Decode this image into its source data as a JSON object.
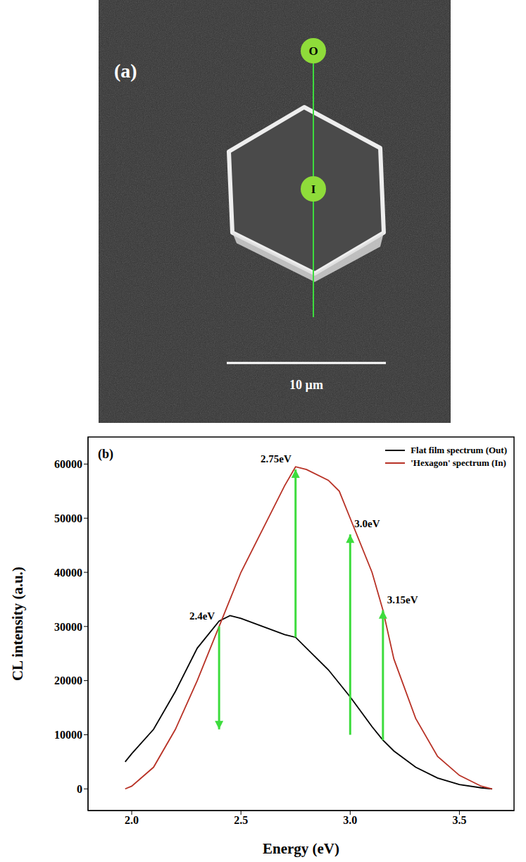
{
  "panel_a": {
    "label": "(a)",
    "markers": [
      "O",
      "I"
    ],
    "scale_bar": "10 µm"
  },
  "chart_data": {
    "type": "line",
    "panel_label": "(b)",
    "xlabel": "Energy (eV)",
    "ylabel": "CL intensity (a.u.)",
    "x": [
      1.97,
      2.0,
      2.1,
      2.2,
      2.3,
      2.4,
      2.45,
      2.5,
      2.6,
      2.7,
      2.75,
      2.8,
      2.9,
      2.95,
      3.0,
      3.1,
      3.15,
      3.2,
      3.3,
      3.4,
      3.5,
      3.6,
      3.65
    ],
    "series": [
      {
        "name": "Flat film spectrum (Out)",
        "color": "#000000",
        "values": [
          5000,
          6500,
          11000,
          18000,
          26000,
          31000,
          32000,
          31500,
          30000,
          28500,
          28000,
          26000,
          22000,
          19500,
          17000,
          11500,
          9000,
          7000,
          4000,
          2000,
          800,
          200,
          0
        ]
      },
      {
        "name": "'Hexagon' spectrum (In)",
        "color": "#b83226",
        "values": [
          0,
          500,
          4000,
          11000,
          20000,
          30000,
          35000,
          40000,
          48000,
          56000,
          59500,
          59000,
          57000,
          55000,
          50000,
          40000,
          33000,
          24000,
          13000,
          6000,
          2500,
          500,
          0
        ]
      }
    ],
    "xlim": [
      1.8,
      3.75
    ],
    "xticks": [
      {
        "value": 2,
        "label": "2.0"
      },
      {
        "value": 2.5,
        "label": "2.5"
      },
      {
        "value": 3,
        "label": "3.0"
      },
      {
        "value": 3.5,
        "label": "3.5"
      }
    ],
    "ylim": [
      -4000,
      65000
    ],
    "yticks": [
      0,
      10000,
      20000,
      30000,
      40000,
      50000,
      60000
    ],
    "grid": false,
    "legend": "upper right",
    "annotations": [
      {
        "text": "2.4eV",
        "x": 2.4,
        "y_from": 30000,
        "y_to": 11000
      },
      {
        "text": "2.75eV",
        "x": 2.75,
        "y_from": 28000,
        "y_to": 59000
      },
      {
        "text": "3.0eV",
        "x": 3.0,
        "y_from": 10000,
        "y_to": 47000
      },
      {
        "text": "3.15eV",
        "x": 3.15,
        "y_from": 9000,
        "y_to": 33000
      }
    ]
  }
}
